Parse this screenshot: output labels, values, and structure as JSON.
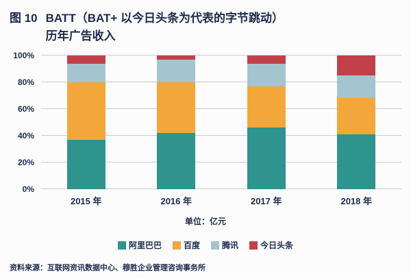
{
  "title": {
    "prefix": "图 10",
    "line1": "BATT（BAT+ 以今日头条为代表的字节跳动）",
    "line2": "历年广告收入"
  },
  "chart_data": {
    "type": "bar",
    "stacked": true,
    "percent": true,
    "categories": [
      "2015 年",
      "2016 年",
      "2017 年",
      "2018 年"
    ],
    "series": [
      {
        "name": "阿里巴巴",
        "color": "#2E948D",
        "values": [
          37,
          42,
          46,
          41
        ]
      },
      {
        "name": "百度",
        "color": "#F3A73B",
        "values": [
          43,
          38,
          31,
          27
        ]
      },
      {
        "name": "腾讯",
        "color": "#A4C4CF",
        "values": [
          14,
          17,
          17,
          17
        ]
      },
      {
        "name": "今日头条",
        "color": "#C2404A",
        "values": [
          6,
          3,
          6,
          15
        ]
      }
    ],
    "yticks": [
      "0%",
      "20%",
      "40%",
      "60%",
      "80%",
      "100%"
    ],
    "ylim": [
      0,
      100
    ],
    "unit_label": "单位：亿元",
    "legend_position": "bottom",
    "grid": true
  },
  "source": "资料来源：互联网资讯数据中心、穆胜企业管理咨询事务所"
}
